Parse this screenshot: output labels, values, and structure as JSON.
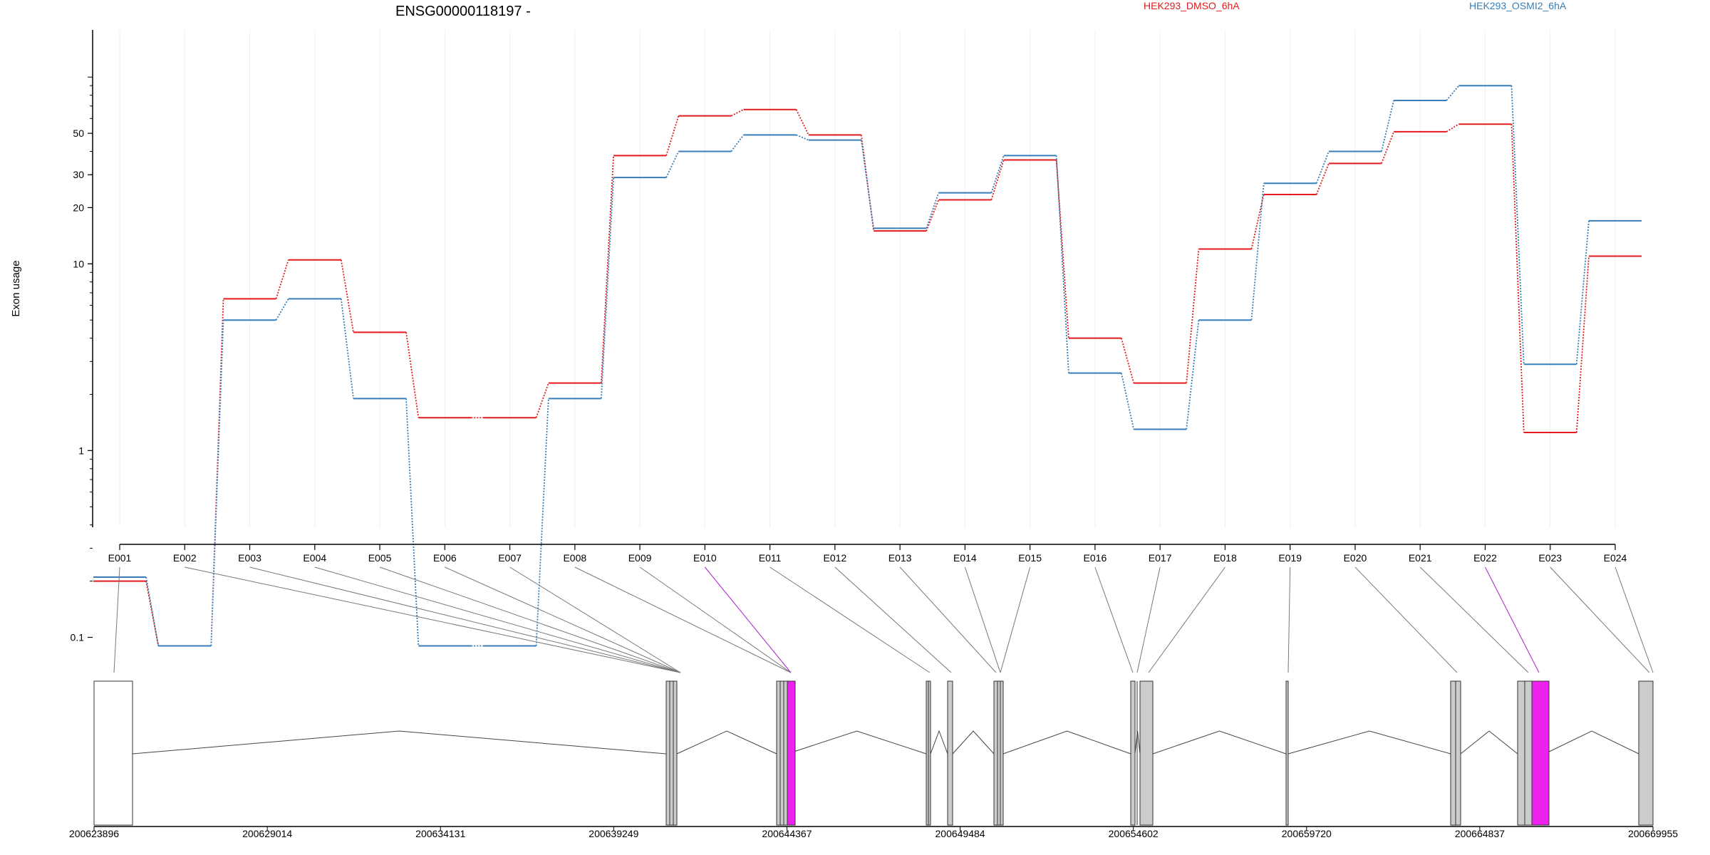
{
  "chart_data": {
    "type": "line",
    "title": "ENSG00000118197 -",
    "xlabel": "",
    "ylabel": "Exon usage",
    "y_scale": "log",
    "ylim": [
      0.085,
      120
    ],
    "y_ticks": [
      0.1,
      1,
      10,
      20,
      30,
      50
    ],
    "y_tick_labels": [
      "0.1",
      "1",
      "10",
      "20",
      "30",
      "50"
    ],
    "grid": "vertical",
    "legend_placement": "top",
    "categories": [
      "E001",
      "E002",
      "E003",
      "E004",
      "E005",
      "E006",
      "E007",
      "E008",
      "E009",
      "E010",
      "E011",
      "E012",
      "E013",
      "E014",
      "E015",
      "E016",
      "E017",
      "E018",
      "E019",
      "E020",
      "E021",
      "E022",
      "E023",
      "E024"
    ],
    "highlight_exons": [
      "E010",
      "E022"
    ],
    "series": [
      {
        "name": "HEK293_DMSO_6hA",
        "color": "#e41a1c",
        "values": [
          0.2,
          0.09,
          6.5,
          10.5,
          4.3,
          1.5,
          1.5,
          2.3,
          38,
          62,
          67,
          49,
          15,
          22,
          36,
          4.0,
          2.3,
          12,
          23.5,
          34.5,
          51,
          56,
          1.25,
          11
        ]
      },
      {
        "name": "HEK293_OSMI2_6hA",
        "color": "#377eb8",
        "values": [
          0.21,
          0.09,
          5.0,
          6.5,
          1.9,
          0.09,
          0.09,
          1.9,
          29,
          40,
          49,
          46,
          15.5,
          24,
          38,
          2.6,
          1.3,
          5.0,
          27,
          40,
          75,
          90,
          2.9,
          17
        ]
      }
    ],
    "genomic_axis": {
      "tick_labels": [
        "200623896",
        "200629014",
        "200634131",
        "200639249",
        "200644367",
        "200649484",
        "200654602",
        "200659720",
        "200664837",
        "200669955"
      ],
      "tick_values": [
        200623896,
        200629014,
        200634131,
        200639249,
        200644367,
        200649484,
        200654602,
        200659720,
        200664837,
        200669955
      ],
      "range": [
        200623896,
        200669955
      ]
    }
  }
}
